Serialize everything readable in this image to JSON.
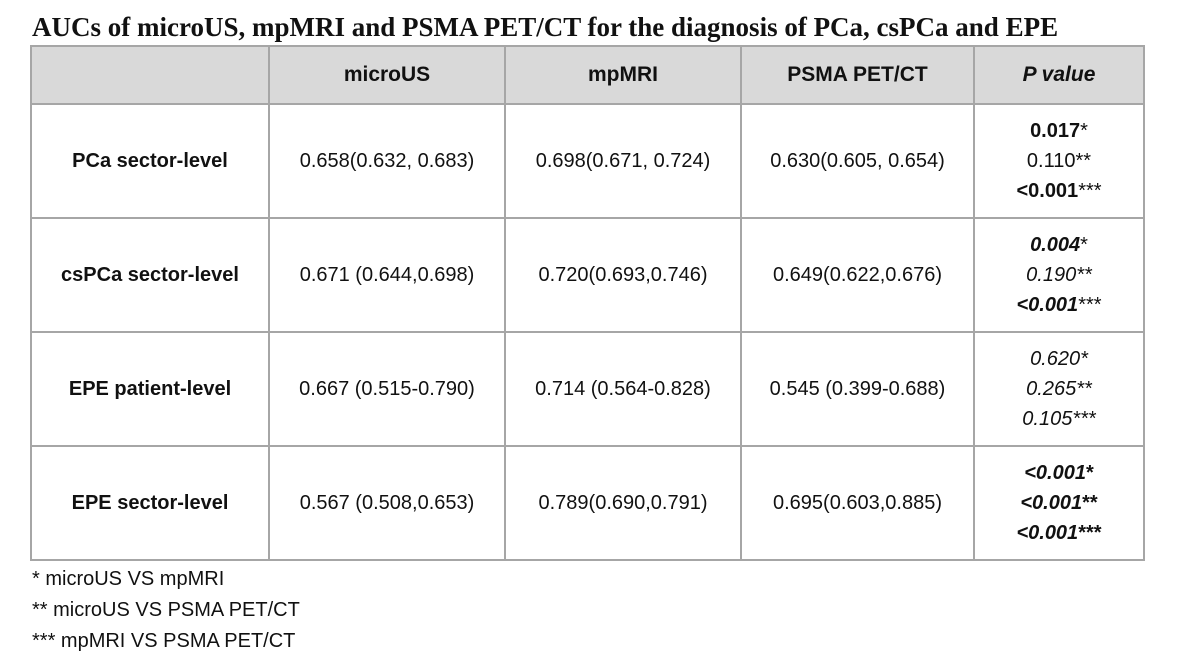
{
  "title": "AUCs of microUS, mpMRI and PSMA PET/CT for the diagnosis of PCa, csPCa and EPE",
  "table": {
    "header": [
      "",
      "microUS",
      "mpMRI",
      "PSMA PET/CT",
      "P value"
    ],
    "rows": [
      {
        "label": "PCa sector-level",
        "cells": [
          "0.658(0.632, 0.683)",
          "0.698(0.671, 0.724)",
          "0.630(0.605, 0.654)"
        ],
        "p_values": [
          {
            "value": "0.017",
            "marker": "*"
          },
          {
            "value": "0.110",
            "marker": "**"
          },
          {
            "value": "<0.001",
            "marker": "***"
          }
        ]
      },
      {
        "label": "csPCa sector-level",
        "cells": [
          "0.671 (0.644,0.698)",
          "0.720(0.693,0.746)",
          "0.649(0.622,0.676)"
        ],
        "p_values": [
          {
            "value": "0.004",
            "marker": "*"
          },
          {
            "value": "0.190",
            "marker": "**"
          },
          {
            "value": "<0.001",
            "marker": "***"
          }
        ]
      },
      {
        "label": "EPE patient-level",
        "cells": [
          "0.667 (0.515-0.790)",
          "0.714 (0.564-0.828)",
          "0.545 (0.399-0.688)"
        ],
        "p_values": [
          {
            "value": "0.620",
            "marker": "*"
          },
          {
            "value": "0.265",
            "marker": "**"
          },
          {
            "value": "0.105",
            "marker": "***"
          }
        ]
      },
      {
        "label": "EPE sector-level",
        "cells": [
          "0.567 (0.508,0.653)",
          "0.789(0.690,0.791)",
          "0.695(0.603,0.885)"
        ],
        "p_values": [
          {
            "value": "<0.001",
            "marker": "*"
          },
          {
            "value": "<0.001",
            "marker": "**"
          },
          {
            "value": "<0.001",
            "marker": "***"
          }
        ]
      }
    ]
  },
  "footnotes": [
    "* microUS VS mpMRI",
    "** microUS VS PSMA PET/CT",
    "*** mpMRI VS PSMA PET/CT"
  ]
}
